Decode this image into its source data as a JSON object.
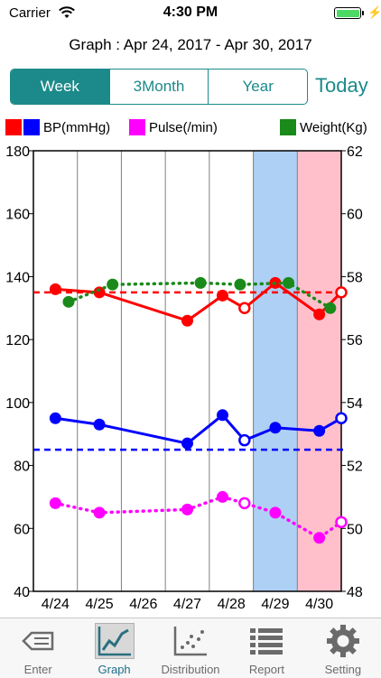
{
  "status_bar": {
    "carrier": "Carrier",
    "time": "4:30 PM",
    "battery_level": 1.0
  },
  "header": {
    "range_title": "Graph : Apr 24, 2017 - Apr 30, 2017",
    "segments": [
      "Week",
      "3Month",
      "Year"
    ],
    "selected_segment": "Week",
    "today_label": "Today"
  },
  "legend": {
    "bp": {
      "label": "BP(mmHg)",
      "colors": [
        "#ff0000",
        "#0000ff"
      ]
    },
    "pulse": {
      "label": "Pulse(/min)",
      "color": "#ff00ff"
    },
    "weight": {
      "label": "Weight(Kg)",
      "color": "#1a8a1a"
    }
  },
  "chart_data": {
    "type": "line",
    "categories": [
      "4/24",
      "4/25",
      "4/26",
      "4/27",
      "4/28",
      "4/29",
      "4/30"
    ],
    "y_left": {
      "min": 40,
      "max": 180,
      "ticks": [
        40,
        60,
        80,
        100,
        120,
        140,
        160,
        180
      ]
    },
    "y_right": {
      "min": 48,
      "max": 62,
      "ticks": [
        48,
        50,
        52,
        54,
        56,
        58,
        60,
        62
      ]
    },
    "highlights": [
      {
        "category": "4/29",
        "color": "#aed0f5"
      },
      {
        "category": "4/30",
        "color": "#ffc0cb"
      }
    ],
    "grid": true,
    "series": [
      {
        "key": "systolic",
        "color": "#ff0000",
        "style": "solid",
        "axis": "left",
        "points": [
          {
            "x": 0.0,
            "y": 136,
            "filled": true
          },
          {
            "x": 1.0,
            "y": 135,
            "filled": true
          },
          {
            "x": 3.0,
            "y": 126,
            "filled": true
          },
          {
            "x": 3.8,
            "y": 134,
            "filled": true
          },
          {
            "x": 4.3,
            "y": 130,
            "filled": false
          },
          {
            "x": 5.0,
            "y": 138,
            "filled": true
          },
          {
            "x": 6.0,
            "y": 128,
            "filled": true
          },
          {
            "x": 6.5,
            "y": 135,
            "filled": false
          }
        ],
        "average": 135
      },
      {
        "key": "diastolic",
        "color": "#0000ff",
        "style": "solid",
        "axis": "left",
        "points": [
          {
            "x": 0.0,
            "y": 95,
            "filled": true
          },
          {
            "x": 1.0,
            "y": 93,
            "filled": true
          },
          {
            "x": 3.0,
            "y": 87,
            "filled": true
          },
          {
            "x": 3.8,
            "y": 96,
            "filled": true
          },
          {
            "x": 4.3,
            "y": 88,
            "filled": false
          },
          {
            "x": 5.0,
            "y": 92,
            "filled": true
          },
          {
            "x": 6.0,
            "y": 91,
            "filled": true
          },
          {
            "x": 6.5,
            "y": 95,
            "filled": false
          }
        ],
        "average": 85
      },
      {
        "key": "pulse",
        "color": "#ff00ff",
        "style": "dotted",
        "axis": "left",
        "points": [
          {
            "x": 0.0,
            "y": 68,
            "filled": true
          },
          {
            "x": 1.0,
            "y": 65,
            "filled": true
          },
          {
            "x": 3.0,
            "y": 66,
            "filled": true
          },
          {
            "x": 3.8,
            "y": 70,
            "filled": true
          },
          {
            "x": 4.3,
            "y": 68,
            "filled": false
          },
          {
            "x": 5.0,
            "y": 65,
            "filled": true
          },
          {
            "x": 6.0,
            "y": 57,
            "filled": true
          },
          {
            "x": 6.5,
            "y": 62,
            "filled": false
          }
        ]
      },
      {
        "key": "weight",
        "color": "#1a8a1a",
        "style": "dotted",
        "axis": "right",
        "points": [
          {
            "x": 0.3,
            "y": 57.2,
            "filled": true
          },
          {
            "x": 1.3,
            "y": 57.75,
            "filled": true
          },
          {
            "x": 3.3,
            "y": 57.8,
            "filled": true
          },
          {
            "x": 4.2,
            "y": 57.75,
            "filled": true
          },
          {
            "x": 5.3,
            "y": 57.8,
            "filled": true
          },
          {
            "x": 6.25,
            "y": 57.0,
            "filled": true
          }
        ]
      }
    ]
  },
  "tabs": [
    {
      "key": "enter",
      "label": "Enter",
      "icon": "pencil-eraser-icon"
    },
    {
      "key": "graph",
      "label": "Graph",
      "icon": "line-chart-icon",
      "active": true
    },
    {
      "key": "distribution",
      "label": "Distribution",
      "icon": "scatter-plot-icon"
    },
    {
      "key": "report",
      "label": "Report",
      "icon": "list-icon"
    },
    {
      "key": "setting",
      "label": "Setting",
      "icon": "gear-icon"
    }
  ]
}
